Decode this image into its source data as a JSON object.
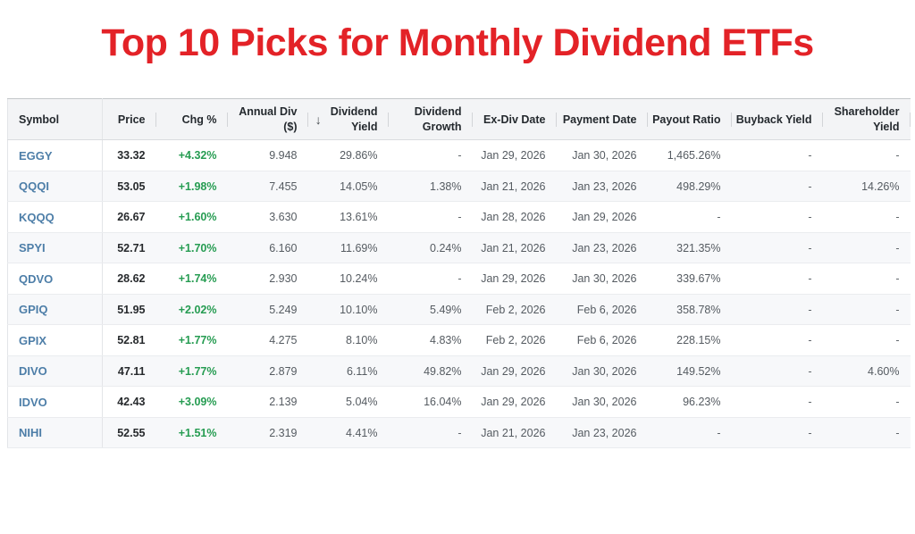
{
  "title": "Top 10 Picks for Monthly Dividend ETFs",
  "colors": {
    "title_red": "#e32227",
    "ticker_blue": "#4d7ea8",
    "positive_green": "#269c52",
    "header_bg": "#f3f4f6",
    "stripe_bg": "#f7f8fa"
  },
  "table": {
    "sort_icon": "↓",
    "sorted_column": "div_yield",
    "sort_direction": "desc",
    "columns": [
      {
        "key": "symbol",
        "label": "Symbol",
        "align": "left"
      },
      {
        "key": "price",
        "label": "Price",
        "align": "right"
      },
      {
        "key": "chg",
        "label": "Chg %",
        "align": "right"
      },
      {
        "key": "annual_div",
        "label": "Annual Div\n($)",
        "align": "right"
      },
      {
        "key": "div_yield",
        "label": "Dividend\nYield",
        "align": "right",
        "sorted": true
      },
      {
        "key": "div_growth",
        "label": "Dividend\nGrowth",
        "align": "right"
      },
      {
        "key": "ex_div",
        "label": "Ex-Div Date",
        "align": "right"
      },
      {
        "key": "pay_date",
        "label": "Payment Date",
        "align": "right"
      },
      {
        "key": "payout",
        "label": "Payout Ratio",
        "align": "right"
      },
      {
        "key": "buyback",
        "label": "Buyback Yield",
        "align": "right"
      },
      {
        "key": "sh_yield",
        "label": "Shareholder\nYield",
        "align": "right"
      }
    ],
    "rows": [
      [
        "EGGY",
        "33.32",
        "+4.32%",
        "9.948",
        "29.86%",
        "-",
        "Jan 29, 2026",
        "Jan 30, 2026",
        "1,465.26%",
        "-",
        "-"
      ],
      [
        "QQQI",
        "53.05",
        "+1.98%",
        "7.455",
        "14.05%",
        "1.38%",
        "Jan 21, 2026",
        "Jan 23, 2026",
        "498.29%",
        "-",
        "14.26%"
      ],
      [
        "KQQQ",
        "26.67",
        "+1.60%",
        "3.630",
        "13.61%",
        "-",
        "Jan 28, 2026",
        "Jan 29, 2026",
        "-",
        "-",
        "-"
      ],
      [
        "SPYI",
        "52.71",
        "+1.70%",
        "6.160",
        "11.69%",
        "0.24%",
        "Jan 21, 2026",
        "Jan 23, 2026",
        "321.35%",
        "-",
        "-"
      ],
      [
        "QDVO",
        "28.62",
        "+1.74%",
        "2.930",
        "10.24%",
        "-",
        "Jan 29, 2026",
        "Jan 30, 2026",
        "339.67%",
        "-",
        "-"
      ],
      [
        "GPIQ",
        "51.95",
        "+2.02%",
        "5.249",
        "10.10%",
        "5.49%",
        "Feb 2, 2026",
        "Feb 6, 2026",
        "358.78%",
        "-",
        "-"
      ],
      [
        "GPIX",
        "52.81",
        "+1.77%",
        "4.275",
        "8.10%",
        "4.83%",
        "Feb 2, 2026",
        "Feb 6, 2026",
        "228.15%",
        "-",
        "-"
      ],
      [
        "DIVO",
        "47.11",
        "+1.77%",
        "2.879",
        "6.11%",
        "49.82%",
        "Jan 29, 2026",
        "Jan 30, 2026",
        "149.52%",
        "-",
        "4.60%"
      ],
      [
        "IDVO",
        "42.43",
        "+3.09%",
        "2.139",
        "5.04%",
        "16.04%",
        "Jan 29, 2026",
        "Jan 30, 2026",
        "96.23%",
        "-",
        "-"
      ],
      [
        "NIHI",
        "52.55",
        "+1.51%",
        "2.319",
        "4.41%",
        "-",
        "Jan 21, 2026",
        "Jan 23, 2026",
        "-",
        "-",
        "-"
      ]
    ]
  }
}
